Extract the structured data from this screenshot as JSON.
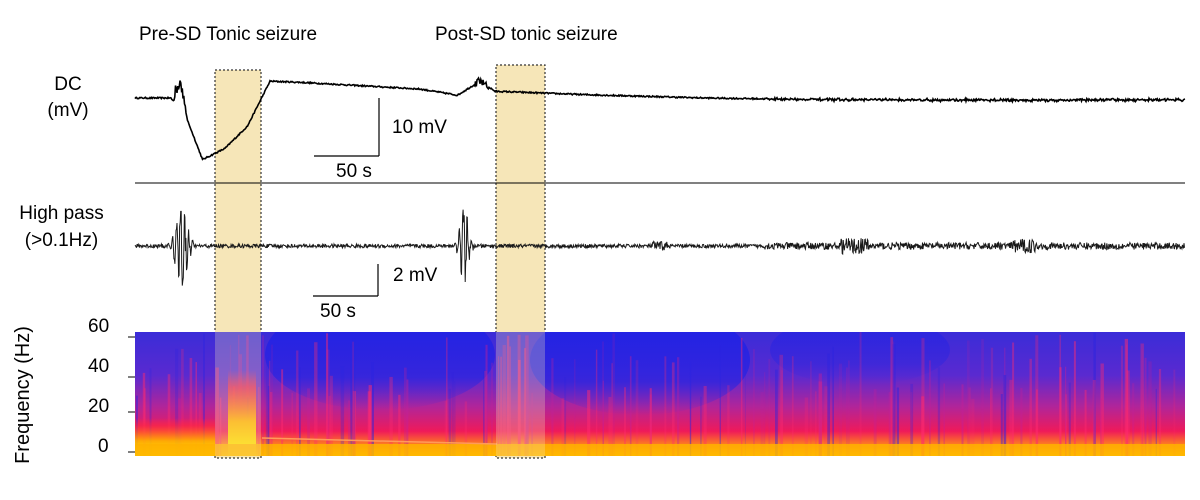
{
  "titles": {
    "pre_sd": "Pre-SD Tonic seizure",
    "post_sd": "Post-SD tonic seizure"
  },
  "traces": {
    "dc": {
      "label_line1": "DC",
      "label_line2": "(mV)",
      "scale_bar_amplitude": "10 mV",
      "scale_bar_time": "50 s"
    },
    "highpass": {
      "label_line1": "High pass",
      "label_line2": "(>0.1Hz)",
      "scale_bar_amplitude": "2 mV",
      "scale_bar_time": "50 s"
    }
  },
  "colors": {
    "highlight_fill": "#f6e6b8",
    "trace": "#000000",
    "spectrogram_low": "#1a2ae0",
    "spectrogram_mid": "#e0208a",
    "spectrogram_high": "#ffe600"
  },
  "chart_data": [
    {
      "type": "line",
      "name": "DC trace",
      "ylabel": "DC (mV)",
      "x_unit": "s",
      "x": [
        0,
        25,
        30,
        35,
        45,
        60,
        75,
        90,
        110,
        150,
        190,
        215,
        230,
        240,
        300,
        380,
        460,
        600,
        700
      ],
      "y": [
        0,
        0,
        3,
        -4,
        -11,
        -9,
        -5,
        3,
        2.8,
        2.2,
        1.6,
        0.5,
        3,
        1.2,
        0.6,
        0,
        -0.3,
        -0.4,
        -0.3
      ],
      "scale_bar": {
        "amplitude_mV": 10,
        "time_s": 50
      }
    },
    {
      "type": "line",
      "name": "High pass trace",
      "ylabel": "High pass (>0.1Hz)",
      "filter_cutoff_hz": 0.1,
      "x_unit": "s",
      "burst_windows_s": [
        [
          22,
          40
        ],
        [
          213,
          226
        ]
      ],
      "scale_bar": {
        "amplitude_mV": 2,
        "time_s": 50
      }
    },
    {
      "type": "heatmap",
      "name": "Spectrogram",
      "ylabel": "Frequency (Hz)",
      "ylim": [
        0,
        60
      ],
      "yticks": [
        0,
        20,
        40,
        60
      ]
    }
  ],
  "highlight_windows_s": [
    [
      20,
      40
    ],
    [
      210,
      230
    ]
  ]
}
